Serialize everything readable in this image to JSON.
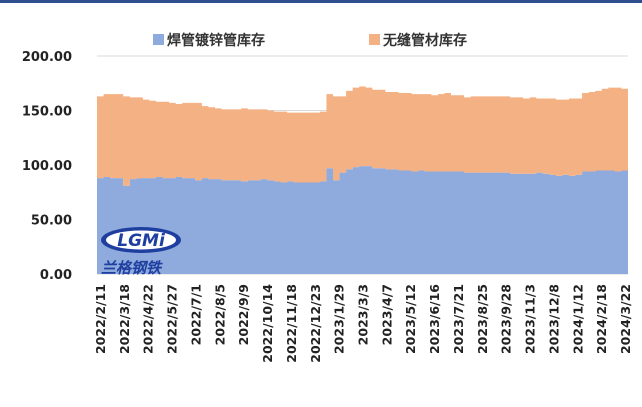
{
  "chart_data": {
    "type": "area",
    "stacked": true,
    "y_ticks": [
      "0.00",
      "50.00",
      "100.00",
      "150.00",
      "200.00"
    ],
    "ylim": [
      0,
      200
    ],
    "x_tick_labels": [
      "2022/2/11",
      "2022/3/18",
      "2022/4/22",
      "2022/5/27",
      "2022/7/1",
      "2022/8/5",
      "2022/9/9",
      "2022/10/14",
      "2022/11/18",
      "2022/12/23",
      "2023/1/29",
      "2023/3/3",
      "2023/4/7",
      "2023/5/12",
      "2023/6/16",
      "2023/7/21",
      "2023/8/25",
      "2023/9/28",
      "2023/11/3",
      "2023/12/8",
      "2024/1/12",
      "2024/2/18",
      "2024/3/22"
    ],
    "legend_position": "top",
    "gridlines": true,
    "series": [
      {
        "name": "焊管镀锌管库存",
        "color": "#8faadc",
        "values": [
          88,
          89,
          88,
          88,
          81,
          87,
          88,
          88,
          88,
          89,
          88,
          88,
          89,
          88,
          88,
          86,
          88,
          87,
          87,
          86,
          86,
          86,
          85,
          86,
          86,
          87,
          86,
          85,
          84,
          85,
          84,
          84,
          84,
          84,
          85,
          97,
          86,
          93,
          96,
          98,
          99,
          99,
          97,
          97,
          96,
          96,
          95,
          95,
          94,
          95,
          94,
          94,
          94,
          94,
          94,
          94,
          93,
          93,
          93,
          93,
          93,
          93,
          93,
          92,
          92,
          92,
          92,
          93,
          92,
          91,
          90,
          91,
          90,
          91,
          94,
          94,
          95,
          95,
          95,
          94,
          95
        ]
      },
      {
        "name": "无缝管材库存",
        "color": "#f4b183",
        "values": [
          75,
          76,
          77,
          77,
          82,
          75,
          74,
          72,
          71,
          69,
          70,
          69,
          67,
          69,
          69,
          71,
          66,
          66,
          65,
          65,
          65,
          65,
          67,
          65,
          65,
          64,
          64,
          64,
          65,
          63,
          64,
          64,
          64,
          64,
          64,
          68,
          77,
          70,
          72,
          73,
          73,
          72,
          72,
          72,
          71,
          71,
          71,
          71,
          71,
          70,
          71,
          70,
          71,
          72,
          70,
          70,
          69,
          70,
          70,
          70,
          70,
          70,
          70,
          70,
          70,
          69,
          70,
          68,
          69,
          70,
          70,
          69,
          71,
          70,
          72,
          73,
          73,
          75,
          76,
          77,
          75
        ]
      }
    ]
  },
  "logo": {
    "text": "LGMi",
    "name": "兰格钢铁"
  }
}
